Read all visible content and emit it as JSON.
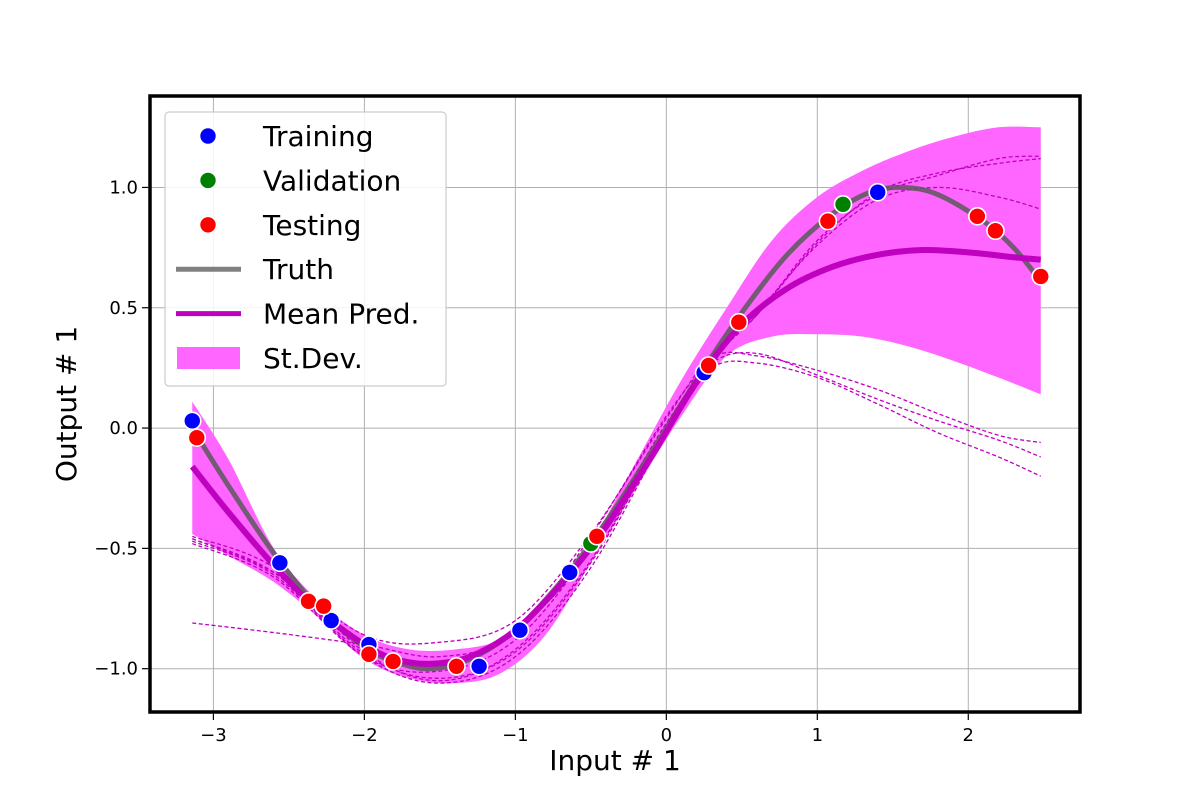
{
  "chart_data": {
    "type": "scatter",
    "title": "",
    "xlabel": "Input # 1",
    "ylabel": "Output # 1",
    "xlim": [
      -3.42,
      2.74
    ],
    "ylim": [
      -1.18,
      1.38
    ],
    "xticks": [
      -3,
      -2,
      -1,
      0,
      1,
      2
    ],
    "xtick_labels": [
      "−3",
      "−2",
      "−1",
      "0",
      "1",
      "2"
    ],
    "yticks": [
      -1.0,
      -0.5,
      0.0,
      0.5,
      1.0
    ],
    "ytick_labels": [
      "−1.0",
      "−0.5",
      "0.0",
      "0.5",
      "1.0"
    ],
    "grid": true,
    "legend_position": "top-left",
    "legend": [
      {
        "label": "Training",
        "kind": "marker",
        "color": "#0000ff"
      },
      {
        "label": "Validation",
        "kind": "marker",
        "color": "#008000"
      },
      {
        "label": "Testing",
        "kind": "marker",
        "color": "#ff0000"
      },
      {
        "label": "Truth",
        "kind": "line",
        "color": "#808080"
      },
      {
        "label": "Mean Pred.",
        "kind": "line",
        "color": "#bf00bf"
      },
      {
        "label": "St.Dev.",
        "kind": "patch",
        "color": "#ff66ff"
      }
    ],
    "colors": {
      "training": "#0000ff",
      "validation": "#008000",
      "testing": "#ff0000",
      "truth": "#5a5a5a",
      "mean": "#bf00bf",
      "band": "#ff66ff",
      "ensemble": "#bf00bf"
    },
    "series": [
      {
        "name": "Training",
        "kind": "scatter",
        "x": [
          -3.14,
          -2.56,
          -2.22,
          -1.97,
          -1.24,
          -0.97,
          -0.64,
          0.25,
          1.4
        ],
        "y": [
          0.03,
          -0.56,
          -0.8,
          -0.9,
          -0.99,
          -0.84,
          -0.6,
          0.23,
          0.98
        ]
      },
      {
        "name": "Validation",
        "kind": "scatter",
        "x": [
          -0.5,
          1.17
        ],
        "y": [
          -0.48,
          0.93
        ]
      },
      {
        "name": "Testing",
        "kind": "scatter",
        "x": [
          -3.11,
          -2.37,
          -2.27,
          -1.97,
          -1.81,
          -1.39,
          -0.46,
          0.28,
          0.48,
          1.07,
          2.06,
          2.18,
          2.48
        ],
        "y": [
          -0.04,
          -0.72,
          -0.74,
          -0.94,
          -0.97,
          -0.99,
          -0.45,
          0.26,
          0.44,
          0.86,
          0.88,
          0.82,
          0.63
        ]
      },
      {
        "name": "Truth",
        "kind": "line",
        "x": [
          -3.14,
          -2.9,
          -2.6,
          -2.3,
          -2.0,
          -1.8,
          -1.57,
          -1.3,
          -1.0,
          -0.7,
          -0.4,
          -0.1,
          0.2,
          0.5,
          0.8,
          1.1,
          1.35,
          1.57,
          1.8,
          2.1,
          2.3,
          2.48
        ],
        "y": [
          0.0,
          -0.24,
          -0.52,
          -0.75,
          -0.91,
          -0.97,
          -1.0,
          -0.96,
          -0.84,
          -0.64,
          -0.39,
          -0.1,
          0.2,
          0.48,
          0.72,
          0.89,
          0.98,
          1.0,
          0.97,
          0.86,
          0.75,
          0.61
        ]
      },
      {
        "name": "Mean Pred.",
        "kind": "line",
        "x": [
          -3.14,
          -2.9,
          -2.6,
          -2.3,
          -2.0,
          -1.8,
          -1.57,
          -1.3,
          -1.0,
          -0.7,
          -0.4,
          -0.1,
          0.2,
          0.5,
          0.8,
          1.1,
          1.4,
          1.7,
          2.0,
          2.3,
          2.48
        ],
        "y": [
          -0.16,
          -0.35,
          -0.57,
          -0.76,
          -0.9,
          -0.96,
          -0.98,
          -0.95,
          -0.84,
          -0.65,
          -0.41,
          -0.12,
          0.19,
          0.43,
          0.58,
          0.67,
          0.72,
          0.74,
          0.73,
          0.71,
          0.7
        ]
      },
      {
        "name": "St.Dev.",
        "kind": "band",
        "x": [
          -3.14,
          -2.9,
          -2.6,
          -2.3,
          -2.0,
          -1.7,
          -1.4,
          -1.1,
          -0.8,
          -0.5,
          -0.2,
          0.1,
          0.4,
          0.7,
          1.0,
          1.3,
          1.6,
          1.9,
          2.2,
          2.48
        ],
        "lower": [
          -0.44,
          -0.53,
          -0.64,
          -0.79,
          -0.96,
          -1.04,
          -1.06,
          -1.02,
          -0.86,
          -0.56,
          -0.25,
          0.05,
          0.3,
          0.38,
          0.39,
          0.38,
          0.34,
          0.28,
          0.21,
          0.14
        ],
        "upper": [
          0.11,
          -0.13,
          -0.5,
          -0.72,
          -0.86,
          -0.92,
          -0.92,
          -0.88,
          -0.74,
          -0.48,
          -0.14,
          0.2,
          0.5,
          0.78,
          0.96,
          1.07,
          1.15,
          1.21,
          1.25,
          1.25
        ]
      }
    ],
    "ensemble_members": [
      {
        "x": [
          -3.14,
          -2.6,
          -2.0,
          -1.5,
          -1.0,
          -0.5,
          0.0,
          0.3,
          0.6,
          1.0,
          1.4,
          1.8,
          2.2,
          2.48
        ],
        "y": [
          -0.81,
          -0.85,
          -0.9,
          -0.95,
          -0.85,
          -0.45,
          0.05,
          0.27,
          0.31,
          0.22,
          0.12,
          0.03,
          -0.05,
          -0.12
        ]
      },
      {
        "x": [
          -3.14,
          -2.6,
          -2.0,
          -1.5,
          -1.0,
          -0.5,
          0.0,
          0.3,
          0.6,
          1.0,
          1.4,
          1.8,
          2.2,
          2.48
        ],
        "y": [
          -0.46,
          -0.6,
          -0.86,
          -0.89,
          -0.8,
          -0.44,
          0.04,
          0.29,
          0.3,
          0.24,
          0.16,
          0.06,
          -0.03,
          -0.06
        ]
      },
      {
        "x": [
          -3.14,
          -2.6,
          -2.0,
          -1.5,
          -1.0,
          -0.5,
          0.0,
          0.3,
          0.6,
          1.0,
          1.4,
          1.8,
          2.2,
          2.48
        ],
        "y": [
          -0.48,
          -0.62,
          -0.95,
          -1.01,
          -0.88,
          -0.5,
          0.02,
          0.25,
          0.27,
          0.21,
          0.1,
          -0.02,
          -0.12,
          -0.2
        ]
      },
      {
        "x": [
          -3.14,
          -2.6,
          -2.0,
          -1.5,
          -1.0,
          -0.5,
          0.0,
          0.3,
          0.6,
          1.0,
          1.4,
          1.8,
          2.2,
          2.48
        ],
        "y": [
          -0.45,
          -0.58,
          -0.93,
          -1.05,
          -0.92,
          -0.55,
          0.0,
          0.3,
          0.47,
          0.77,
          0.98,
          1.06,
          1.1,
          1.12
        ]
      },
      {
        "x": [
          -3.14,
          -2.6,
          -2.0,
          -1.5,
          -1.0,
          -0.5,
          0.0,
          0.3,
          0.6,
          1.0,
          1.4,
          1.8,
          2.2,
          2.48
        ],
        "y": [
          -0.47,
          -0.61,
          -0.95,
          -1.06,
          -0.95,
          -0.58,
          -0.02,
          0.29,
          0.48,
          0.76,
          0.95,
          1.0,
          0.96,
          0.91
        ]
      },
      {
        "x": [
          -3.14,
          -2.6,
          -2.0,
          -1.5,
          -1.0,
          -0.5,
          0.0,
          0.3,
          0.6,
          1.0,
          1.4,
          1.8,
          2.2,
          2.48
        ],
        "y": [
          -0.46,
          -0.6,
          -0.94,
          -1.04,
          -0.93,
          -0.56,
          -0.01,
          0.28,
          0.47,
          0.78,
          0.97,
          1.05,
          1.12,
          1.13
        ]
      }
    ]
  }
}
